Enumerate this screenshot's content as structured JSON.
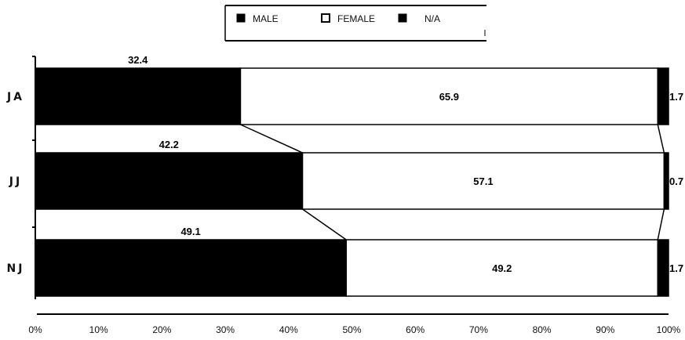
{
  "chart_data": {
    "type": "bar",
    "orientation": "horizontal",
    "stacked": "percent",
    "categories": [
      "JA",
      "JJ",
      "NJ"
    ],
    "series": [
      {
        "name": "MALE",
        "values": [
          32.4,
          42.2,
          49.1
        ],
        "color": "#000000"
      },
      {
        "name": "FEMALE",
        "values": [
          65.9,
          57.1,
          49.2
        ],
        "color": "#ffffff"
      },
      {
        "name": "N/A",
        "values": [
          1.7,
          0.7,
          1.7
        ],
        "color": "#000000"
      }
    ],
    "data_labels": [
      [
        "32.4",
        "65.9",
        "1.7"
      ],
      [
        "42.2",
        "57.1",
        "0.7"
      ],
      [
        "49.1",
        "49.2",
        "1.7"
      ]
    ],
    "x_ticks": [
      "0%",
      "10%",
      "20%",
      "30%",
      "40%",
      "50%",
      "60%",
      "70%",
      "80%",
      "90%",
      "100%"
    ],
    "xlim": [
      0,
      100
    ],
    "series_lines": true,
    "legend_position": "top",
    "title": "",
    "xlabel": "",
    "ylabel": ""
  }
}
